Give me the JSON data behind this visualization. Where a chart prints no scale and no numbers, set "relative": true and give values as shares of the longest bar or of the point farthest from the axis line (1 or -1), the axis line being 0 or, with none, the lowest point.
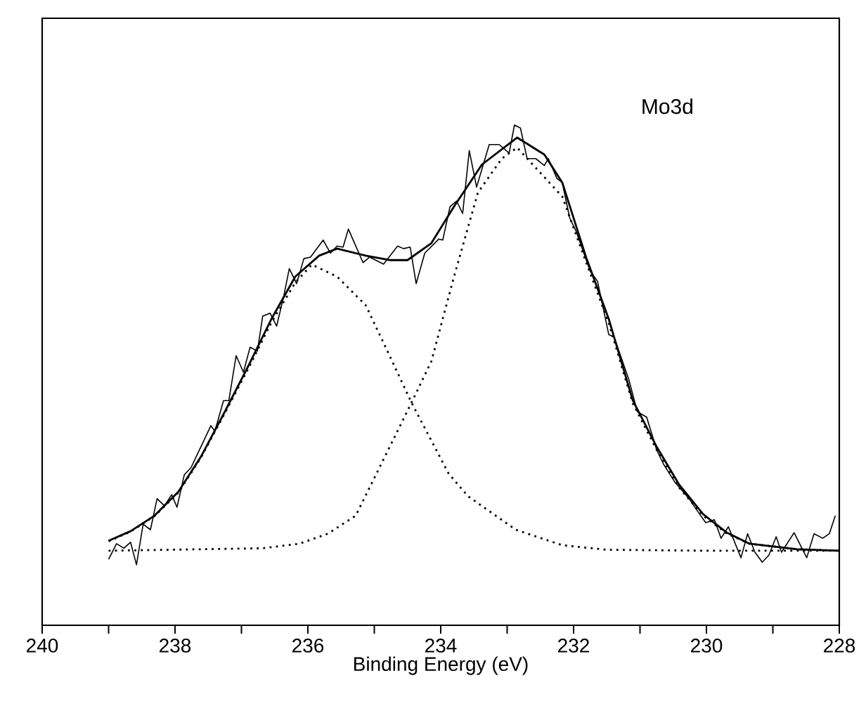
{
  "chart_data": {
    "type": "line",
    "relative": true,
    "xlabel": "Binding Energy (eV)",
    "annotations": [
      "Mo3d"
    ],
    "xlim": [
      240,
      228
    ],
    "xticks": [
      240,
      {
        "value": 239,
        "label": null
      },
      238,
      {
        "value": 237,
        "label": null
      },
      236,
      {
        "value": 235,
        "label": null
      },
      234,
      {
        "value": 233,
        "label": null
      },
      232,
      {
        "value": 231,
        "label": null
      },
      230,
      {
        "value": 229,
        "label": null
      },
      228
    ],
    "series": [
      {
        "color": "#000000",
        "line_style": "solid",
        "x": [
          239.0,
          238.88,
          238.77,
          238.67,
          238.58,
          238.48,
          238.37,
          238.27,
          238.16,
          238.05,
          237.97,
          237.86,
          237.76,
          237.67,
          237.46,
          237.4,
          237.27,
          237.19,
          237.08,
          236.97,
          236.87,
          236.76,
          236.68,
          236.57,
          236.47,
          236.36,
          236.28,
          236.17,
          236.06,
          235.96,
          235.77,
          235.66,
          235.56,
          235.47,
          235.39,
          235.17,
          235.07,
          234.86,
          234.65,
          234.56,
          234.46,
          234.37,
          234.24,
          234.03,
          233.97,
          233.86,
          233.76,
          233.67,
          233.57,
          233.46,
          233.27,
          233.12,
          232.97,
          232.89,
          232.8,
          232.7,
          232.57,
          232.44,
          232.38,
          232.25,
          232.17,
          232.06,
          231.96,
          231.75,
          231.64,
          231.47,
          231.39,
          231.17,
          231.04,
          230.9,
          230.75,
          230.65,
          230.48,
          230.26,
          230.16,
          230.01,
          229.88,
          229.78,
          229.67,
          229.48,
          229.38,
          229.27,
          229.16,
          229.06,
          228.95,
          228.87,
          228.68,
          228.49,
          228.38,
          228.25,
          228.15,
          228.06
        ],
        "values": [
          0.132,
          0.163,
          0.154,
          0.166,
          0.121,
          0.202,
          0.191,
          0.253,
          0.239,
          0.261,
          0.236,
          0.301,
          0.315,
          0.34,
          0.399,
          0.388,
          0.449,
          0.449,
          0.539,
          0.506,
          0.556,
          0.548,
          0.618,
          0.624,
          0.598,
          0.66,
          0.713,
          0.683,
          0.733,
          0.736,
          0.77,
          0.744,
          0.758,
          0.756,
          0.792,
          0.725,
          0.736,
          0.722,
          0.758,
          0.753,
          0.756,
          0.683,
          0.744,
          0.772,
          0.77,
          0.837,
          0.848,
          0.823,
          0.949,
          0.876,
          0.961,
          0.961,
          0.944,
          1.0,
          0.994,
          0.933,
          0.933,
          0.919,
          0.933,
          0.893,
          0.885,
          0.815,
          0.787,
          0.708,
          0.688,
          0.581,
          0.576,
          0.492,
          0.427,
          0.416,
          0.351,
          0.323,
          0.287,
          0.253,
          0.233,
          0.205,
          0.211,
          0.174,
          0.197,
          0.135,
          0.183,
          0.146,
          0.126,
          0.14,
          0.177,
          0.146,
          0.185,
          0.135,
          0.183,
          0.174,
          0.183,
          0.219
        ]
      },
      {
        "color": "#000000",
        "line_style": "solid",
        "x": [
          239.0,
          238.67,
          238.31,
          237.95,
          237.61,
          237.25,
          236.89,
          236.55,
          236.19,
          235.83,
          235.56,
          235.13,
          234.77,
          234.5,
          234.14,
          233.8,
          233.38,
          232.85,
          232.44,
          232.17,
          231.81,
          231.47,
          231.11,
          230.75,
          230.41,
          230.05,
          229.69,
          229.35,
          228.63,
          228.0
        ],
        "values": [
          0.169,
          0.188,
          0.219,
          0.267,
          0.337,
          0.427,
          0.52,
          0.612,
          0.697,
          0.739,
          0.753,
          0.739,
          0.73,
          0.73,
          0.764,
          0.837,
          0.921,
          0.975,
          0.941,
          0.885,
          0.735,
          0.612,
          0.45,
          0.357,
          0.281,
          0.222,
          0.185,
          0.163,
          0.152,
          0.149
        ]
      },
      {
        "color": "#000000",
        "line_style": "dotted",
        "x": [
          239.0,
          238.67,
          238.31,
          237.95,
          237.61,
          237.25,
          236.89,
          236.55,
          236.19,
          235.94,
          235.56,
          235.13,
          234.77,
          234.44,
          234.29,
          233.88,
          233.59,
          232.87,
          232.17,
          231.5,
          230.0,
          228.0
        ],
        "values": [
          0.168,
          0.187,
          0.218,
          0.265,
          0.335,
          0.424,
          0.515,
          0.605,
          0.685,
          0.721,
          0.697,
          0.64,
          0.539,
          0.445,
          0.407,
          0.303,
          0.258,
          0.191,
          0.16,
          0.151,
          0.149,
          0.149
        ]
      },
      {
        "color": "#000000",
        "line_style": "dotted",
        "x": [
          239.0,
          236.68,
          236.13,
          235.7,
          235.28,
          234.44,
          234.14,
          233.8,
          233.44,
          233.08,
          232.85,
          232.17,
          231.81,
          231.47,
          231.11,
          230.75,
          230.41,
          230.05,
          229.69,
          229.35,
          228.63,
          228.0
        ],
        "values": [
          0.149,
          0.154,
          0.163,
          0.183,
          0.219,
          0.445,
          0.528,
          0.697,
          0.865,
          0.933,
          0.955,
          0.857,
          0.725,
          0.604,
          0.444,
          0.351,
          0.275,
          0.219,
          0.183,
          0.163,
          0.152,
          0.149
        ]
      }
    ]
  }
}
